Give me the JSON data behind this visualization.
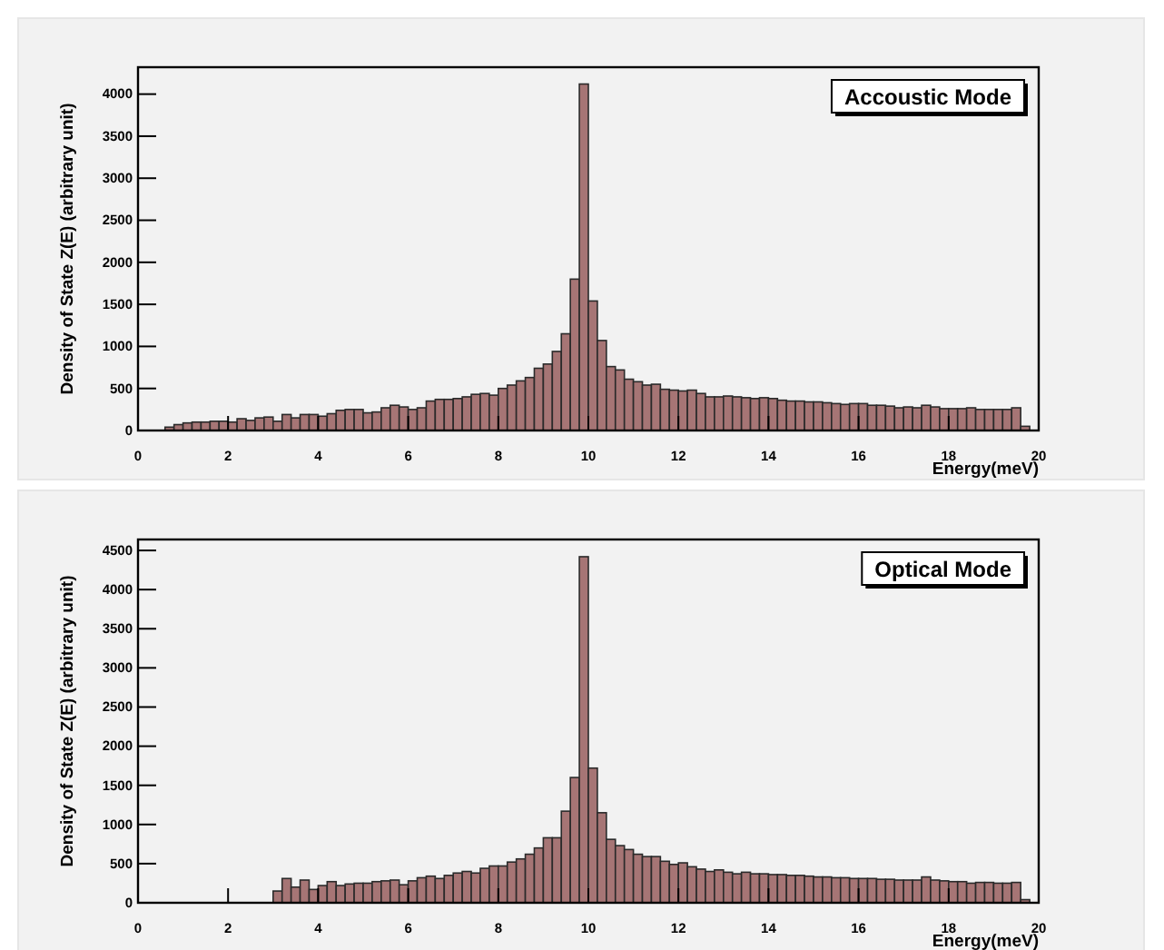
{
  "chart_data": [
    {
      "type": "histogram",
      "title": "Accoustic Mode",
      "xlabel": "Energy(meV)",
      "ylabel": "Density of State Z(E) (arbitrary unit)",
      "color": "#a67575",
      "bins": [
        0,
        0.2,
        0.4,
        0.6,
        0.8,
        1,
        1.2,
        1.4,
        1.6,
        1.8,
        2,
        2.2,
        2.4,
        2.6,
        2.8,
        3,
        3.2,
        3.4,
        3.6,
        3.8,
        4,
        4.2,
        4.4,
        4.6,
        4.8,
        5,
        5.2,
        5.4,
        5.6,
        5.8,
        6,
        6.2,
        6.4,
        6.6,
        6.8,
        7,
        7.2,
        7.4,
        7.6,
        7.8,
        8,
        8.2,
        8.4,
        8.6,
        8.8,
        9,
        9.2,
        9.4,
        9.6,
        9.8,
        10,
        10.2,
        10.4,
        10.6,
        10.8,
        11,
        11.2,
        11.4,
        11.6,
        11.8,
        12,
        12.2,
        12.4,
        12.6,
        12.8,
        13,
        13.2,
        13.4,
        13.6,
        13.8,
        14,
        14.2,
        14.4,
        14.6,
        14.8,
        15,
        15.2,
        15.4,
        15.6,
        15.8,
        16,
        16.2,
        16.4,
        16.6,
        16.8,
        17,
        17.2,
        17.4,
        17.6,
        17.8,
        18,
        18.2,
        18.4,
        18.6,
        18.8,
        19,
        19.2,
        19.4,
        19.6,
        19.8,
        20
      ],
      "values": [
        0,
        0,
        null,
        40,
        70,
        90,
        100,
        100,
        110,
        110,
        100,
        140,
        120,
        150,
        160,
        110,
        190,
        150,
        190,
        190,
        170,
        200,
        240,
        250,
        250,
        210,
        220,
        270,
        300,
        280,
        250,
        270,
        350,
        370,
        370,
        380,
        400,
        430,
        440,
        420,
        500,
        540,
        590,
        630,
        740,
        790,
        940,
        1150,
        1800,
        4120,
        1540,
        1070,
        760,
        720,
        610,
        580,
        540,
        550,
        490,
        480,
        470,
        480,
        440,
        400,
        400,
        410,
        400,
        390,
        380,
        390,
        380,
        360,
        350,
        350,
        340,
        340,
        330,
        320,
        310,
        320,
        320,
        300,
        300,
        290,
        270,
        280,
        270,
        300,
        280,
        260,
        260,
        260,
        270,
        250,
        250,
        250,
        250,
        270,
        50,
        0
      ],
      "xlim": [
        0,
        20
      ],
      "ylim": [
        0,
        4320
      ],
      "xticks": [
        0,
        2,
        4,
        6,
        8,
        10,
        12,
        14,
        16,
        18,
        20
      ],
      "yticks": [
        0,
        500,
        1000,
        1500,
        2000,
        2500,
        3000,
        3500,
        4000
      ]
    },
    {
      "type": "histogram",
      "title": "Optical Mode",
      "xlabel": "Energy(meV)",
      "ylabel": "Density of State Z(E) (arbitrary unit)",
      "color": "#a67575",
      "bins": [
        0,
        0.2,
        0.4,
        0.6,
        0.8,
        1,
        1.2,
        1.4,
        1.6,
        1.8,
        2,
        2.2,
        2.4,
        2.6,
        2.8,
        3,
        3.2,
        3.4,
        3.6,
        3.8,
        4,
        4.2,
        4.4,
        4.6,
        4.8,
        5,
        5.2,
        5.4,
        5.6,
        5.8,
        6,
        6.2,
        6.4,
        6.6,
        6.8,
        7,
        7.2,
        7.4,
        7.6,
        7.8,
        8,
        8.2,
        8.4,
        8.6,
        8.8,
        9,
        9.2,
        9.4,
        9.6,
        9.8,
        10,
        10.2,
        10.4,
        10.6,
        10.8,
        11,
        11.2,
        11.4,
        11.6,
        11.8,
        12,
        12.2,
        12.4,
        12.6,
        12.8,
        13,
        13.2,
        13.4,
        13.6,
        13.8,
        14,
        14.2,
        14.4,
        14.6,
        14.8,
        15,
        15.2,
        15.4,
        15.6,
        15.8,
        16,
        16.2,
        16.4,
        16.6,
        16.8,
        17,
        17.2,
        17.4,
        17.6,
        17.8,
        18,
        18.2,
        18.4,
        18.6,
        18.8,
        19,
        19.2,
        19.4,
        19.6,
        19.8,
        20
      ],
      "values": [
        0,
        0,
        0,
        0,
        0,
        0,
        0,
        0,
        0,
        0,
        0,
        0,
        0,
        0,
        0,
        150,
        310,
        200,
        290,
        170,
        220,
        270,
        220,
        240,
        250,
        250,
        270,
        280,
        290,
        230,
        280,
        320,
        340,
        310,
        350,
        380,
        400,
        380,
        440,
        470,
        470,
        520,
        560,
        620,
        700,
        830,
        830,
        1170,
        1600,
        4420,
        1720,
        1150,
        810,
        730,
        680,
        620,
        590,
        590,
        530,
        490,
        510,
        460,
        430,
        400,
        420,
        390,
        370,
        390,
        370,
        370,
        360,
        360,
        350,
        350,
        340,
        330,
        330,
        320,
        320,
        310,
        310,
        310,
        300,
        300,
        290,
        290,
        290,
        330,
        290,
        280,
        270,
        270,
        250,
        260,
        260,
        250,
        250,
        260,
        40,
        0
      ],
      "xlim": [
        0,
        20
      ],
      "ylim": [
        0,
        4640
      ],
      "xticks": [
        0,
        2,
        4,
        6,
        8,
        10,
        12,
        14,
        16,
        18,
        20
      ],
      "yticks": [
        0,
        500,
        1000,
        1500,
        2000,
        2500,
        3000,
        3500,
        4000,
        4500
      ]
    }
  ]
}
